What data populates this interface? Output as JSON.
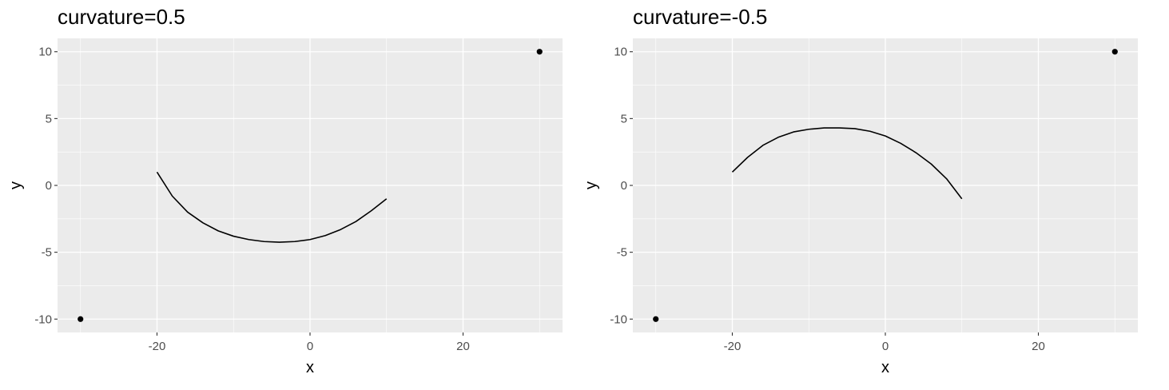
{
  "chart_data": [
    {
      "type": "line",
      "title": "curvature=0.5",
      "xlabel": "x",
      "ylabel": "y",
      "xlim": [
        -33,
        33
      ],
      "ylim": [
        -11,
        11
      ],
      "x_ticks": [
        -20,
        0,
        20
      ],
      "y_ticks": [
        -10,
        -5,
        0,
        5,
        10
      ],
      "grid": true,
      "points": [
        [
          -30,
          -10
        ],
        [
          30,
          10
        ]
      ],
      "curve": {
        "x": [
          -20,
          -18,
          -16,
          -14,
          -12,
          -10,
          -8,
          -6,
          -4,
          -2,
          0,
          2,
          4,
          6,
          8,
          10
        ],
        "y": [
          1,
          -0.8,
          -2,
          -2.8,
          -3.4,
          -3.8,
          -4.05,
          -4.2,
          -4.25,
          -4.2,
          -4.05,
          -3.75,
          -3.3,
          -2.7,
          -1.9,
          -1
        ]
      }
    },
    {
      "type": "line",
      "title": "curvature=-0.5",
      "xlabel": "x",
      "ylabel": "y",
      "xlim": [
        -33,
        33
      ],
      "ylim": [
        -11,
        11
      ],
      "x_ticks": [
        -20,
        0,
        20
      ],
      "y_ticks": [
        -10,
        -5,
        0,
        5,
        10
      ],
      "grid": true,
      "points": [
        [
          -30,
          -10
        ],
        [
          30,
          10
        ]
      ],
      "curve": {
        "x": [
          -20,
          -18,
          -16,
          -14,
          -12,
          -10,
          -8,
          -6,
          -4,
          -2,
          0,
          2,
          4,
          6,
          8,
          10
        ],
        "y": [
          1,
          2.1,
          3,
          3.6,
          4,
          4.2,
          4.3,
          4.3,
          4.25,
          4.05,
          3.7,
          3.15,
          2.45,
          1.6,
          0.5,
          -1
        ]
      }
    }
  ]
}
